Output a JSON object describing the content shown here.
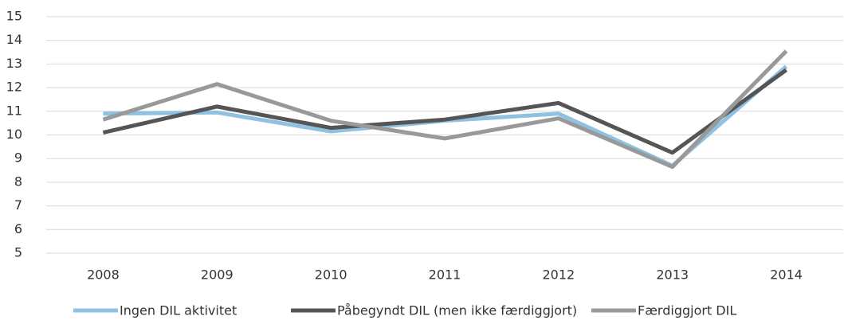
{
  "chart_data": {
    "type": "line",
    "categories": [
      "2008",
      "2009",
      "2010",
      "2011",
      "2012",
      "2013",
      "2014"
    ],
    "series": [
      {
        "name": "Ingen DIL aktivitet",
        "color": "#8fc1e0",
        "values": [
          10.9,
          10.95,
          10.15,
          10.6,
          10.9,
          8.7,
          12.9
        ]
      },
      {
        "name": "Påbegyndt DIL (men ikke færdiggjort)",
        "color": "#555555",
        "values": [
          10.1,
          11.2,
          10.3,
          10.65,
          11.35,
          9.25,
          12.75
        ]
      },
      {
        "name": "Færdiggjort DIL",
        "color": "#999999",
        "values": [
          10.65,
          12.15,
          10.6,
          9.85,
          10.7,
          8.65,
          13.55
        ]
      }
    ],
    "ylim": [
      5,
      15
    ],
    "yticks": [
      5,
      6,
      7,
      8,
      9,
      10,
      11,
      12,
      13,
      14,
      15
    ],
    "grid": true,
    "legend": "bottom"
  }
}
